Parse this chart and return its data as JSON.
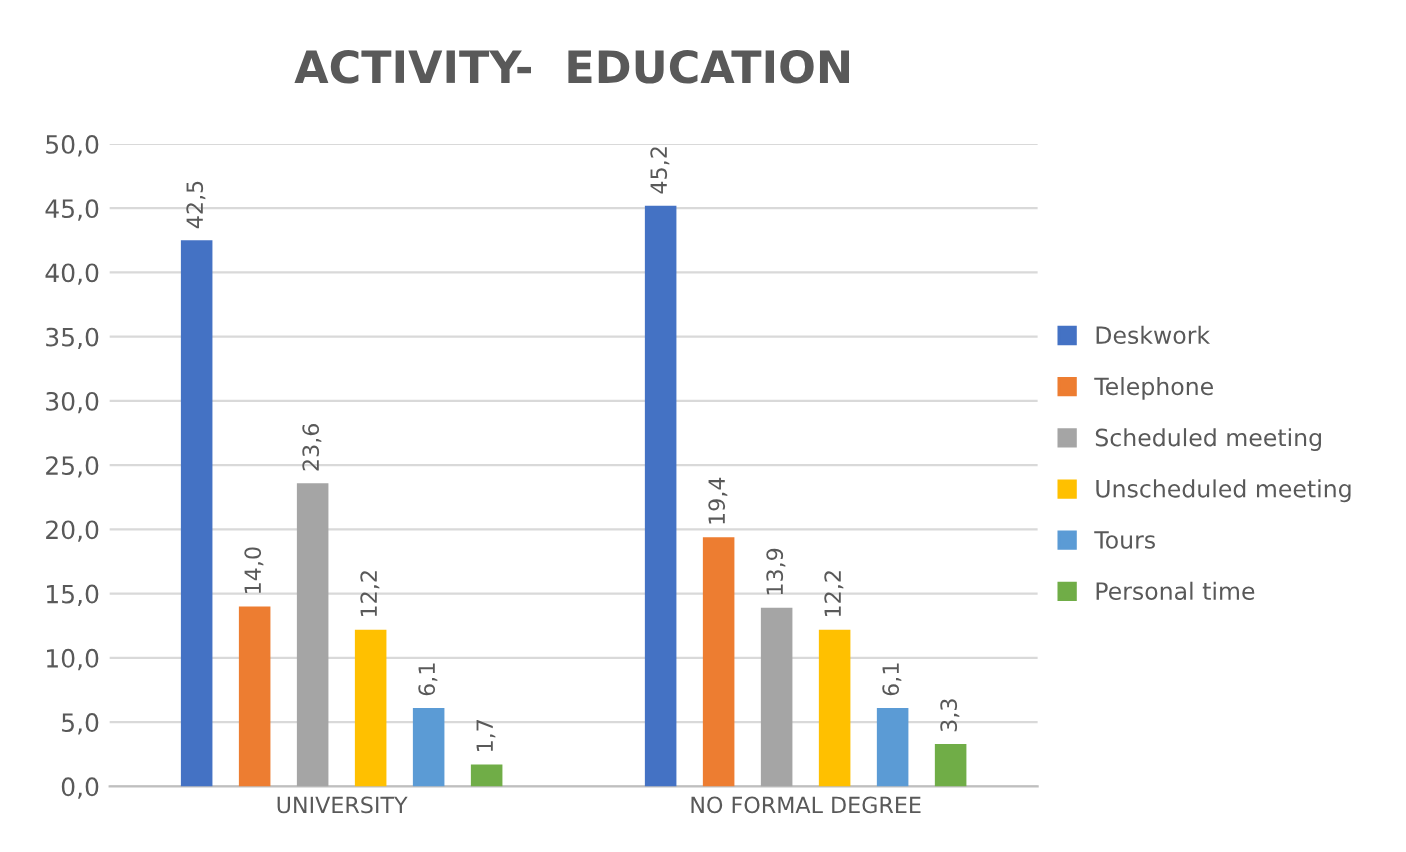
{
  "chart_data": {
    "type": "bar",
    "title": "ACTIVITY-  EDUCATION",
    "categories": [
      "UNIVERSITY",
      "NO FORMAL DEGREE"
    ],
    "series": [
      {
        "name": "Deskwork",
        "color": "#4472c4",
        "values": [
          42.5,
          45.2
        ],
        "value_labels": [
          "42,5",
          "45,2"
        ]
      },
      {
        "name": "Telephone",
        "color": "#ed7d31",
        "values": [
          14.0,
          19.4
        ],
        "value_labels": [
          "14,0",
          "19,4"
        ]
      },
      {
        "name": "Scheduled meeting",
        "color": "#a5a5a5",
        "values": [
          23.6,
          13.9
        ],
        "value_labels": [
          "23,6",
          "13,9"
        ]
      },
      {
        "name": "Unscheduled meeting",
        "color": "#ffc000",
        "values": [
          12.2,
          12.2
        ],
        "value_labels": [
          "12,2",
          "12,2"
        ]
      },
      {
        "name": "Tours",
        "color": "#5b9bd5",
        "values": [
          6.1,
          6.1
        ],
        "value_labels": [
          "6,1",
          "6,1"
        ]
      },
      {
        "name": "Personal time",
        "color": "#70ad47",
        "values": [
          1.7,
          3.3
        ],
        "value_labels": [
          "1,7",
          "3,3"
        ]
      }
    ],
    "ylim": [
      0,
      50
    ],
    "yticks": [
      {
        "value": 0,
        "label": "0,0"
      },
      {
        "value": 5,
        "label": "5,0"
      },
      {
        "value": 10,
        "label": "10,0"
      },
      {
        "value": 15,
        "label": "15,0"
      },
      {
        "value": 20,
        "label": "20,0"
      },
      {
        "value": 25,
        "label": "25,0"
      },
      {
        "value": 30,
        "label": "30,0"
      },
      {
        "value": 35,
        "label": "35,0"
      },
      {
        "value": 40,
        "label": "40,0"
      },
      {
        "value": 45,
        "label": "45,0"
      },
      {
        "value": 50,
        "label": "50,0"
      }
    ],
    "grid": "y",
    "legend": "right"
  }
}
